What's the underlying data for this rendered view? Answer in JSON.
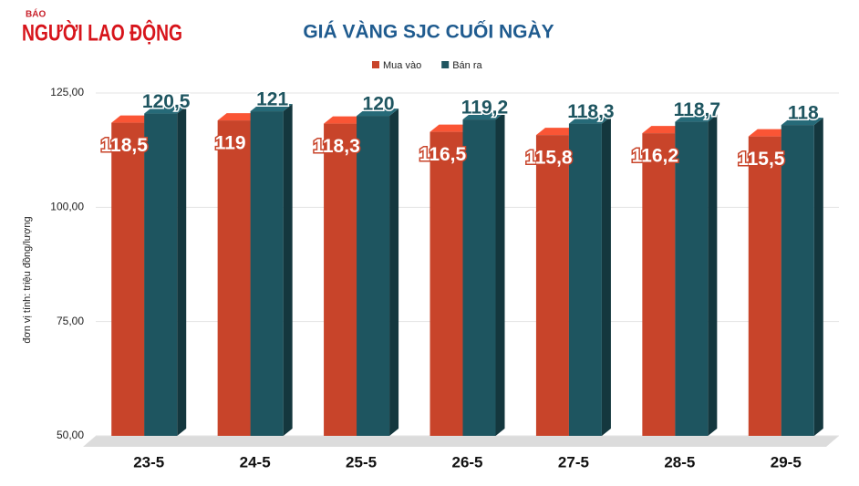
{
  "brand": {
    "small": "BÁO",
    "name": "NGƯỜI LAO ĐỘNG"
  },
  "chart_data": {
    "type": "bar3d",
    "title": "GIÁ VÀNG SJC CUỐI NGÀY",
    "y_label": "đơn vị tính: triệu đồng/lượng",
    "categories": [
      "23-5",
      "24-5",
      "25-5",
      "26-5",
      "27-5",
      "28-5",
      "29-5"
    ],
    "series": [
      {
        "name": "Mua vào",
        "color": "#c8442a",
        "values": [
          118.5,
          119,
          118.3,
          116.5,
          115.8,
          116.2,
          115.5
        ],
        "value_labels": [
          "118,5",
          "119",
          "118,3",
          "116,5",
          "115,8",
          "116,2",
          "115,5"
        ]
      },
      {
        "name": "Bán ra",
        "color": "#1e5560",
        "values": [
          120.5,
          121,
          120,
          119.2,
          118.3,
          118.7,
          118
        ],
        "value_labels": [
          "120,5",
          "121",
          "120",
          "119,2",
          "118,3",
          "118,7",
          "118"
        ]
      }
    ],
    "ylim": [
      50,
      125
    ],
    "yticks": [
      {
        "value": 50,
        "label": "50,00"
      },
      {
        "value": 75,
        "label": "75,00"
      },
      {
        "value": 100,
        "label": "100,00"
      },
      {
        "value": 125,
        "label": "125,00"
      }
    ],
    "grid": true,
    "legend": "top"
  }
}
